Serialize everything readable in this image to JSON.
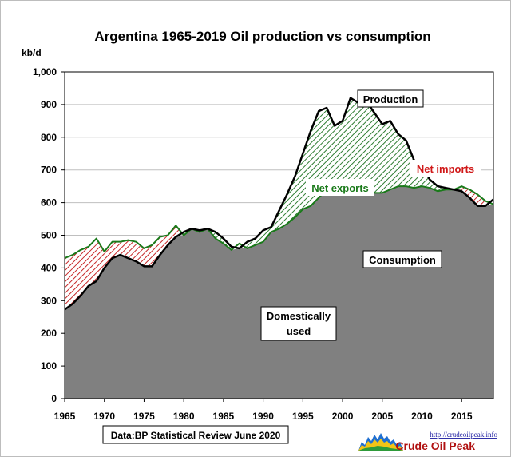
{
  "chart_data": {
    "type": "area",
    "title": "Argentina  1965-2019 Oil production  vs consumption",
    "ylabel": "kb/d",
    "xlabel": "",
    "ylim": [
      0,
      1000
    ],
    "xlim": [
      1965,
      2019
    ],
    "y_ticks": [
      "0",
      "100",
      "200",
      "300",
      "400",
      "500",
      "600",
      "700",
      "800",
      "900",
      "1,000"
    ],
    "x_ticks": [
      "1965",
      "1970",
      "1975",
      "1980",
      "1985",
      "1990",
      "1995",
      "2000",
      "2005",
      "2010",
      "2015"
    ],
    "grid": true,
    "x": [
      1965,
      1966,
      1967,
      1968,
      1969,
      1970,
      1971,
      1972,
      1973,
      1974,
      1975,
      1976,
      1977,
      1978,
      1979,
      1980,
      1981,
      1982,
      1983,
      1984,
      1985,
      1986,
      1987,
      1988,
      1989,
      1990,
      1991,
      1992,
      1993,
      1994,
      1995,
      1996,
      1997,
      1998,
      1999,
      2000,
      2001,
      2002,
      2003,
      2004,
      2005,
      2006,
      2007,
      2008,
      2009,
      2010,
      2011,
      2012,
      2013,
      2014,
      2015,
      2016,
      2017,
      2018,
      2019
    ],
    "series": [
      {
        "name": "Production",
        "values": [
          273,
          290,
          315,
          345,
          360,
          400,
          430,
          440,
          430,
          420,
          405,
          405,
          440,
          470,
          495,
          510,
          520,
          515,
          520,
          510,
          490,
          465,
          460,
          480,
          490,
          515,
          525,
          575,
          625,
          680,
          750,
          820,
          880,
          890,
          835,
          850,
          920,
          905,
          910,
          875,
          840,
          850,
          810,
          790,
          730,
          710,
          670,
          650,
          645,
          640,
          635,
          615,
          590,
          590,
          610
        ]
      },
      {
        "name": "Consumption",
        "values": [
          430,
          440,
          455,
          465,
          490,
          450,
          480,
          480,
          485,
          480,
          460,
          470,
          495,
          500,
          530,
          500,
          520,
          510,
          520,
          490,
          475,
          455,
          475,
          460,
          470,
          480,
          510,
          520,
          535,
          555,
          580,
          590,
          615,
          640,
          630,
          640,
          630,
          640,
          640,
          630,
          630,
          640,
          650,
          650,
          645,
          650,
          645,
          635,
          640,
          640,
          650,
          640,
          625,
          605,
          595
        ]
      }
    ],
    "shown_bands": {
      "net_exports_fill": "diagonal green hatch",
      "net_imports_fill": "diagonal red hatch",
      "domestic_fill": "#7f7f7f"
    },
    "annotations": {
      "production": "Production",
      "consumption": "Consumption",
      "net_exports": "Net exports",
      "net_imports": "Net imports",
      "domestic_line1": "Domestically",
      "domestic_line2": "used"
    },
    "source_note": "Data:BP Statistical Review June 2020"
  },
  "colors": {
    "domestic": "#808080",
    "exports_hatch": "#2e7d32",
    "imports_hatch": "#c62828",
    "net_exports_text": "#1a7a1a",
    "net_imports_text": "#d01818"
  },
  "logo": {
    "url_text": "http://crudeoilpeak.info",
    "name": "Crude Oil Peak"
  }
}
